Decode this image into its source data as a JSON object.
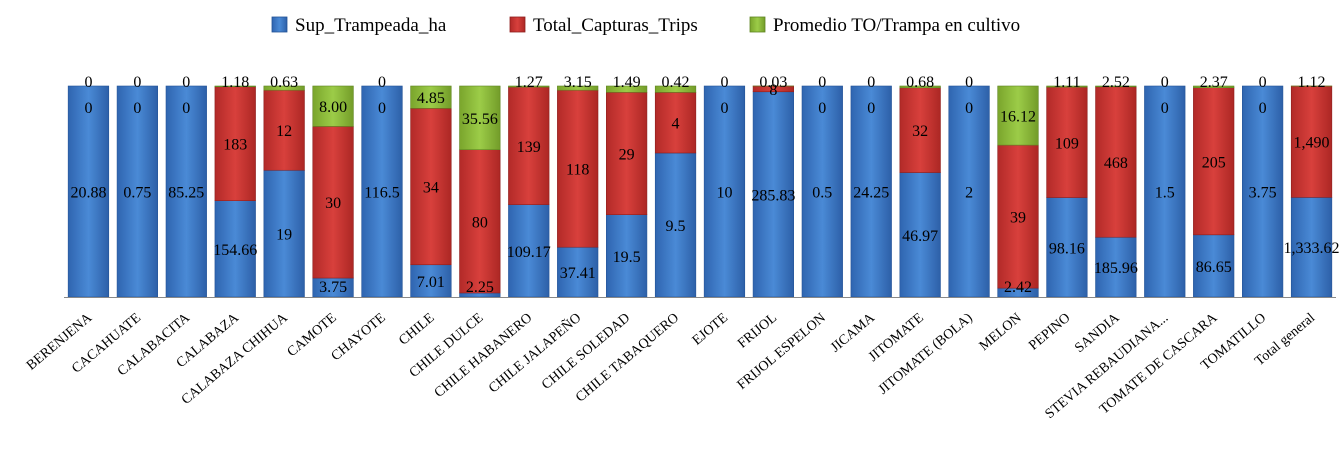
{
  "chart_data": {
    "type": "bar",
    "stacked": "percent",
    "legend_position": "top",
    "grid": false,
    "categories": [
      "BERENJENA",
      "CACAHUATE",
      "CALABACITA",
      "CALABAZA",
      "CALABAZA CHIHUA",
      "CAMOTE",
      "CHAYOTE",
      "CHILE",
      "CHILE DULCE",
      "CHILE HABANERO",
      "CHILE JALAPEÑO",
      "CHILE SOLEDAD",
      "CHILE TABAQUERO",
      "EJOTE",
      "FRIJOL",
      "FRIJOL ESPELON",
      "JICAMA",
      "JITOMATE",
      "JITOMATE (BOLA)",
      "MELON",
      "PEPINO",
      "SANDIA",
      "STEVIA REBAUDIANA...",
      "TOMATE DE CASCARA",
      "TOMATILLO",
      "Total general"
    ],
    "series": [
      {
        "name": "Sup_Trampeada_ha",
        "color": "#3b78c4",
        "values": [
          20.88,
          0.75,
          85.25,
          154.66,
          19,
          3.75,
          116.5,
          7.01,
          2.25,
          109.17,
          37.41,
          19.5,
          9.5,
          10,
          285.83,
          0.5,
          24.25,
          46.97,
          2,
          2.42,
          98.16,
          185.96,
          1.5,
          86.65,
          3.75,
          1333.62
        ],
        "labels": [
          "20.88",
          "0.75",
          "85.25",
          "154.66",
          "19",
          "3.75",
          "116.5",
          "7.01",
          "2.25",
          "109.17",
          "37.41",
          "19.5",
          "9.5",
          "10",
          "285.83",
          "0.5",
          "24.25",
          "46.97",
          "2",
          "2.42",
          "98.16",
          "185.96",
          "1.5",
          "86.65",
          "3.75",
          "1,333.62"
        ]
      },
      {
        "name": "Total_Capturas_Trips",
        "color": "#c8322f",
        "values": [
          0,
          0,
          0,
          183,
          12,
          30,
          0,
          34,
          80,
          139,
          118,
          29,
          4,
          0,
          8,
          0,
          0,
          32,
          0,
          39,
          109,
          468,
          0,
          205,
          0,
          1490
        ],
        "labels": [
          "0",
          "0",
          "0",
          "183",
          "12",
          "30",
          "0",
          "34",
          "80",
          "139",
          "118",
          "29",
          "4",
          "0",
          "8",
          "0",
          "0",
          "32",
          "0",
          "39",
          "109",
          "468",
          "0",
          "205",
          "0",
          "1,490"
        ]
      },
      {
        "name": "Promedio TO/Trampa en cultivo",
        "color": "#8cb83a",
        "values": [
          0,
          0,
          0,
          1.18,
          0.63,
          8.0,
          0,
          4.85,
          35.56,
          1.27,
          3.15,
          1.49,
          0.42,
          0,
          0.03,
          0,
          0,
          0.68,
          0,
          16.12,
          1.11,
          2.52,
          0,
          2.37,
          0,
          1.12
        ],
        "labels": [
          "0",
          "0",
          "0",
          "1.18",
          "0.63",
          "8.00",
          "0",
          "4.85",
          "35.56",
          "1.27",
          "3.15",
          "1.49",
          "0.42",
          "0",
          "0.03",
          "0",
          "0",
          "0.68",
          "0",
          "16.12",
          "1.11",
          "2.52",
          "0",
          "2.37",
          "0",
          "1.12"
        ]
      }
    ]
  }
}
